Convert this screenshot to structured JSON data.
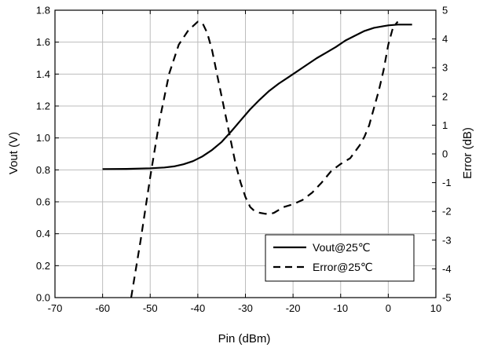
{
  "chart_data": {
    "type": "line",
    "xlabel": "Pin (dBm)",
    "ylabel": "Vout (V)",
    "y2label": "Error (dB)",
    "xlim": [
      -70,
      10
    ],
    "ylim": [
      0.0,
      1.8
    ],
    "y2lim": [
      -5,
      5
    ],
    "xticks": [
      "-70",
      "-60",
      "-50",
      "-40",
      "-30",
      "-20",
      "-10",
      "0",
      "10"
    ],
    "yticks": [
      "0.0",
      "0.2",
      "0.4",
      "0.6",
      "0.8",
      "1.0",
      "1.2",
      "1.4",
      "1.6",
      "1.8"
    ],
    "y2ticks": [
      "-5",
      "-4",
      "-3",
      "-2",
      "-1",
      "0",
      "1",
      "2",
      "3",
      "4",
      "5"
    ],
    "grid": true,
    "legend_position": "bottom-right",
    "series": [
      {
        "name": "Vout@25℃",
        "axis": "left",
        "style": "solid",
        "color": "#000000",
        "x": [
          -60,
          -55,
          -50,
          -47,
          -45,
          -43,
          -41,
          -39,
          -37,
          -35,
          -33,
          -31,
          -29,
          -27,
          -25,
          -23,
          -21,
          -19,
          -17,
          -15,
          -13,
          -11,
          -9,
          -7,
          -5,
          -3,
          -1,
          0,
          2,
          5
        ],
        "y": [
          0.805,
          0.806,
          0.81,
          0.815,
          0.822,
          0.835,
          0.855,
          0.885,
          0.925,
          0.975,
          1.04,
          1.11,
          1.18,
          1.24,
          1.295,
          1.34,
          1.38,
          1.42,
          1.46,
          1.5,
          1.535,
          1.57,
          1.61,
          1.64,
          1.67,
          1.69,
          1.7,
          1.705,
          1.71,
          1.71
        ]
      },
      {
        "name": "Error@25℃",
        "axis": "right",
        "style": "dashed",
        "color": "#000000",
        "x": [
          -54,
          -52,
          -50,
          -48,
          -46,
          -44,
          -42,
          -40,
          -39,
          -38,
          -37,
          -36,
          -35,
          -34,
          -33,
          -32,
          -31,
          -30,
          -29,
          -28,
          -27,
          -26,
          -25,
          -24,
          -23,
          -22,
          -21,
          -20,
          -18,
          -16,
          -14,
          -12,
          -10,
          -8,
          -6,
          -5,
          -4,
          -3,
          -2,
          -1,
          0,
          1,
          2
        ],
        "y": [
          -5.0,
          -3.0,
          -0.8,
          1.2,
          2.8,
          3.8,
          4.3,
          4.6,
          4.55,
          4.2,
          3.6,
          2.8,
          2.0,
          1.2,
          0.4,
          -0.4,
          -1.0,
          -1.5,
          -1.85,
          -2.0,
          -2.05,
          -2.08,
          -2.1,
          -2.05,
          -1.95,
          -1.85,
          -1.8,
          -1.75,
          -1.6,
          -1.35,
          -1.0,
          -0.6,
          -0.35,
          -0.15,
          0.3,
          0.6,
          1.0,
          1.6,
          2.2,
          2.9,
          3.8,
          4.4,
          4.6
        ]
      }
    ]
  }
}
